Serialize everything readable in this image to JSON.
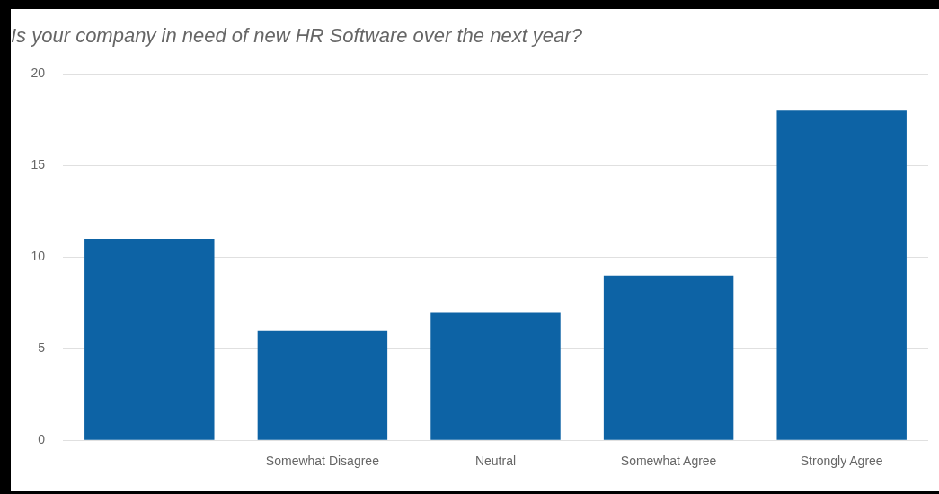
{
  "chart_data": {
    "type": "bar",
    "title": "Is your company in need of new HR Software over the next year?",
    "categories": [
      null,
      "Somewhat Disagree",
      "Neutral",
      "Somewhat Agree",
      "Strongly Agree"
    ],
    "values": [
      11,
      6,
      7,
      9,
      18
    ],
    "color": "#0d63a5",
    "ylim": [
      0,
      20
    ],
    "yticks": [
      0,
      5,
      10,
      15,
      20
    ],
    "grid": "y",
    "legend": false
  }
}
